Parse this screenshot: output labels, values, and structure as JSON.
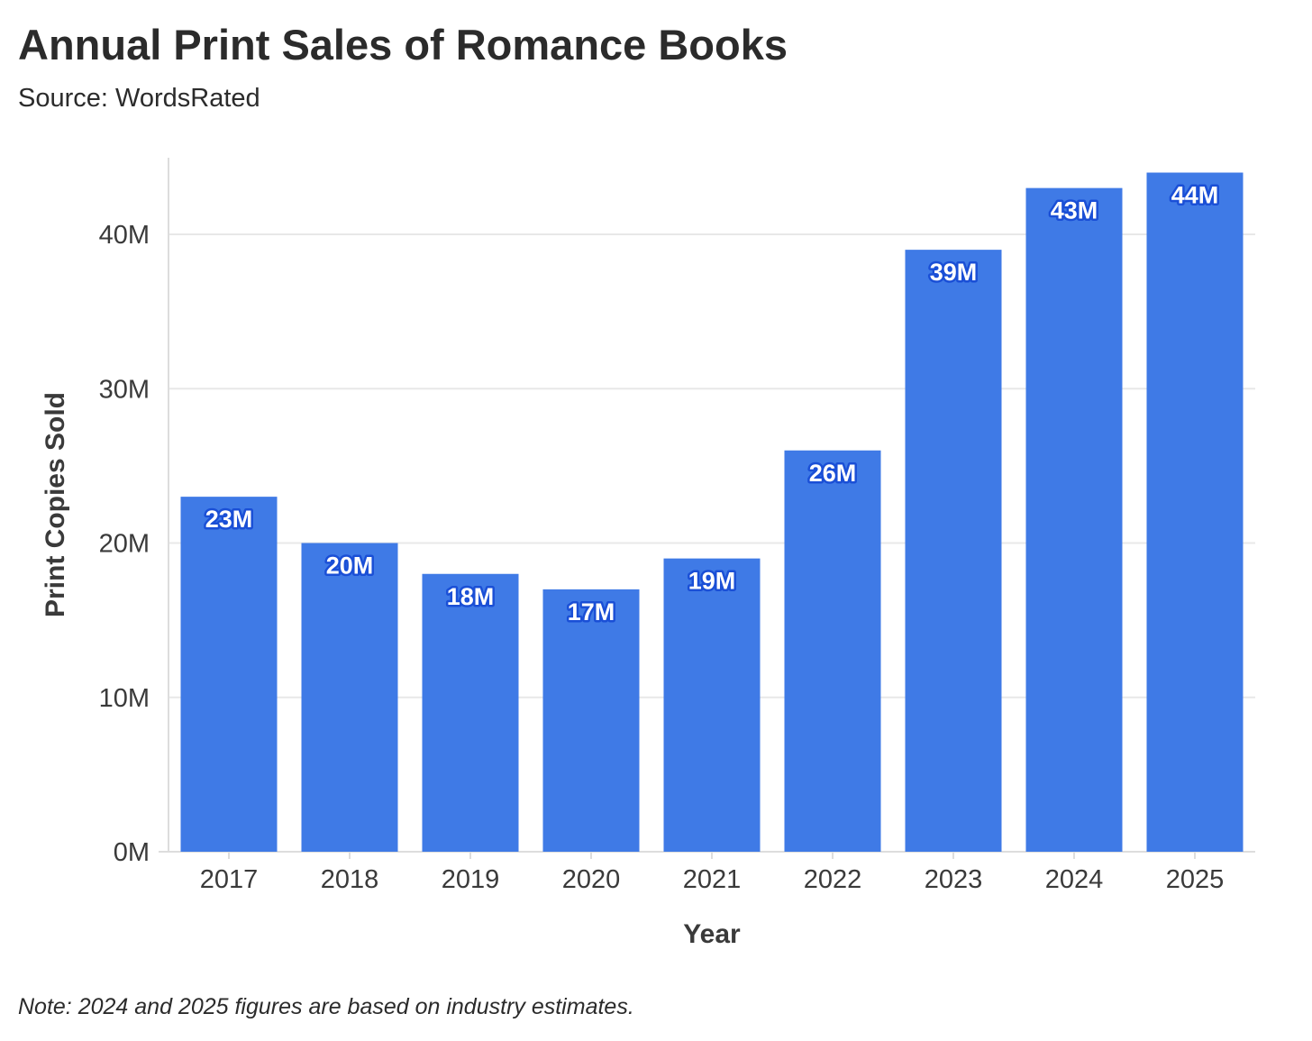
{
  "chart_data": {
    "type": "bar",
    "title": "Annual Print Sales of Romance Books",
    "subtitle": "Source: WordsRated",
    "note": "Note: 2024 and 2025 figures are based on industry estimates.",
    "xlabel": "Year",
    "ylabel": "Print Copies Sold",
    "categories": [
      "2017",
      "2018",
      "2019",
      "2020",
      "2021",
      "2022",
      "2023",
      "2024",
      "2025"
    ],
    "values": [
      23,
      20,
      18,
      17,
      19,
      26,
      39,
      43,
      44
    ],
    "value_unit": "M",
    "data_labels": [
      "23M",
      "20M",
      "18M",
      "17M",
      "19M",
      "26M",
      "39M",
      "43M",
      "44M"
    ],
    "yticks": [
      0,
      10,
      20,
      30,
      40
    ],
    "ytick_labels": [
      "0M",
      "10M",
      "20M",
      "30M",
      "40M"
    ],
    "ylim": [
      0,
      45
    ],
    "grid": true,
    "legend": "none",
    "colors": {
      "bar": "#3f7ae6",
      "label_outline": "#1a4fd6",
      "grid": "#e8e8e8",
      "axis": "#dddddd",
      "text": "#2b2b2b"
    }
  }
}
